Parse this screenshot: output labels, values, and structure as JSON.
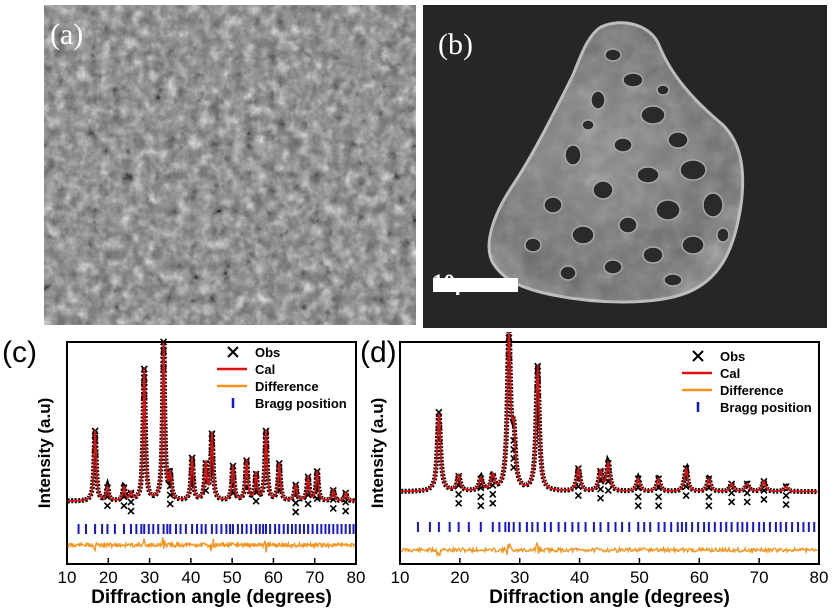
{
  "panels": {
    "a": {
      "label": "(a)"
    },
    "b": {
      "label": "(b)",
      "scale_bar": "10μm"
    }
  },
  "colors": {
    "obs": "#000000",
    "cal": "#e01010",
    "difference": "#f7941d",
    "bragg": "#1515e0"
  },
  "chart_data": [
    {
      "type": "line",
      "panel_label": "(c)",
      "xlabel": "Diffraction angle (degrees)",
      "ylabel": "Intensity (a.u)",
      "xlim": [
        10,
        80
      ],
      "xticks": [
        10,
        20,
        30,
        40,
        50,
        60,
        70,
        80
      ],
      "yticks": [],
      "legend": {
        "position": "top-right",
        "entries": [
          "Obs",
          "Cal",
          "Difference",
          "Bragg position"
        ]
      },
      "baseline": 0.08,
      "peaks": [
        {
          "x": 16.8,
          "y": 0.52
        },
        {
          "x": 19.8,
          "y": 0.1
        },
        {
          "x": 23.8,
          "y": 0.1
        },
        {
          "x": 25.5,
          "y": 0.06
        },
        {
          "x": 28.7,
          "y": 0.98
        },
        {
          "x": 33.4,
          "y": 1.18
        },
        {
          "x": 35.0,
          "y": 0.18
        },
        {
          "x": 40.3,
          "y": 0.32
        },
        {
          "x": 43.6,
          "y": 0.28
        },
        {
          "x": 45.1,
          "y": 0.5
        },
        {
          "x": 50.2,
          "y": 0.26
        },
        {
          "x": 53.5,
          "y": 0.3
        },
        {
          "x": 55.8,
          "y": 0.2
        },
        {
          "x": 58.2,
          "y": 0.52
        },
        {
          "x": 61.4,
          "y": 0.28
        },
        {
          "x": 65.4,
          "y": 0.12
        },
        {
          "x": 68.4,
          "y": 0.18
        },
        {
          "x": 70.6,
          "y": 0.22
        },
        {
          "x": 74.5,
          "y": 0.08
        },
        {
          "x": 77.5,
          "y": 0.06
        }
      ],
      "bragg_positions": [
        12.8,
        14.6,
        16.8,
        18.5,
        19.8,
        21.6,
        23.8,
        25.5,
        26.8,
        28.0,
        28.7,
        29.8,
        30.9,
        32.1,
        33.4,
        34.3,
        35.0,
        36.4,
        37.5,
        38.8,
        40.3,
        41.5,
        42.6,
        43.6,
        45.1,
        46.2,
        47.4,
        48.6,
        49.5,
        50.2,
        51.4,
        52.4,
        53.5,
        54.6,
        55.8,
        56.7,
        57.5,
        58.2,
        59.2,
        60.4,
        61.4,
        62.5,
        63.5,
        64.5,
        65.4,
        66.4,
        67.4,
        68.4,
        69.5,
        70.6,
        71.6,
        72.6,
        73.5,
        74.5,
        75.5,
        76.5,
        77.5,
        78.5,
        79.4
      ]
    },
    {
      "type": "line",
      "panel_label": "(d)",
      "xlabel": "Diffraction angle (degrees)",
      "ylabel": "Intensity (a.u)",
      "xlim": [
        10,
        80
      ],
      "xticks": [
        10,
        20,
        30,
        40,
        50,
        60,
        70,
        80
      ],
      "yticks": [],
      "legend": {
        "position": "top-right",
        "entries": [
          "Obs",
          "Cal",
          "Difference",
          "Bragg position"
        ]
      },
      "baseline": 0.12,
      "peaks": [
        {
          "x": 16.5,
          "y": 0.62
        },
        {
          "x": 19.8,
          "y": 0.12
        },
        {
          "x": 23.5,
          "y": 0.1
        },
        {
          "x": 25.5,
          "y": 0.12
        },
        {
          "x": 28.2,
          "y": 1.2
        },
        {
          "x": 29.0,
          "y": 0.4
        },
        {
          "x": 33.0,
          "y": 0.98
        },
        {
          "x": 39.8,
          "y": 0.18
        },
        {
          "x": 43.5,
          "y": 0.16
        },
        {
          "x": 44.8,
          "y": 0.22
        },
        {
          "x": 49.8,
          "y": 0.1
        },
        {
          "x": 53.2,
          "y": 0.1
        },
        {
          "x": 57.8,
          "y": 0.18
        },
        {
          "x": 61.6,
          "y": 0.1
        },
        {
          "x": 65.4,
          "y": 0.06
        },
        {
          "x": 68.0,
          "y": 0.06
        },
        {
          "x": 70.8,
          "y": 0.08
        },
        {
          "x": 74.5,
          "y": 0.04
        }
      ],
      "bragg_positions": [
        13.0,
        15.0,
        16.5,
        18.3,
        19.8,
        21.5,
        23.5,
        25.5,
        26.6,
        27.6,
        28.2,
        29.0,
        30.0,
        31.2,
        32.1,
        33.0,
        34.2,
        35.2,
        36.5,
        37.6,
        38.8,
        39.8,
        41.0,
        42.4,
        43.5,
        44.8,
        46.0,
        47.1,
        48.3,
        49.8,
        50.8,
        51.8,
        53.2,
        54.2,
        55.3,
        56.4,
        57.1,
        57.8,
        58.8,
        59.8,
        60.8,
        61.6,
        62.6,
        63.6,
        64.5,
        65.4,
        66.4,
        67.2,
        68.0,
        69.0,
        70.0,
        70.8,
        71.8,
        72.8,
        73.6,
        74.5,
        75.5,
        76.5,
        77.4,
        78.3,
        79.2
      ]
    }
  ]
}
